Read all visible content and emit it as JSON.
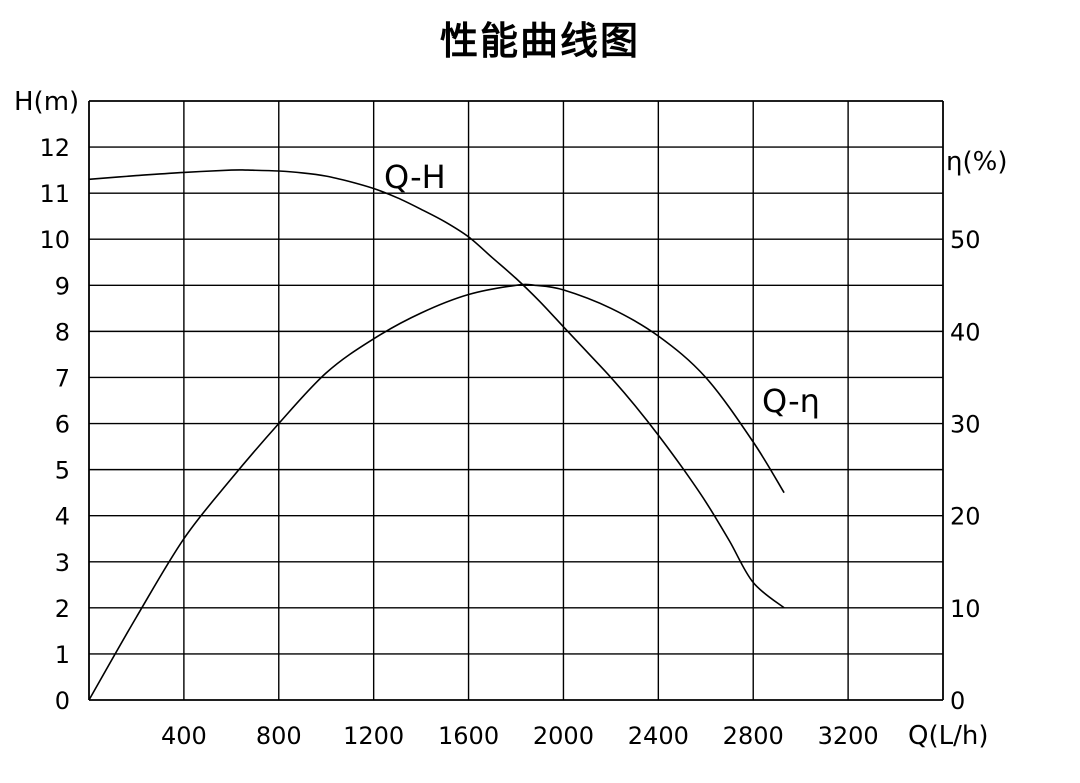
{
  "chart_data": {
    "type": "line",
    "title": "性能曲线图",
    "xlabel": "Q(L/h)",
    "ylabel_left": "H(m)",
    "ylabel_right": "η(%)",
    "xlim": [
      0,
      3600
    ],
    "ylim_left": [
      0,
      13
    ],
    "ylim_right": [
      0,
      65
    ],
    "x_ticks": [
      400,
      800,
      1200,
      1600,
      2000,
      2400,
      2800,
      3200
    ],
    "y_left_ticks": [
      0,
      1,
      2,
      3,
      4,
      5,
      6,
      7,
      8,
      9,
      10,
      11,
      12
    ],
    "y_right_ticks": [
      0,
      10,
      20,
      30,
      40,
      50
    ],
    "grid": true,
    "series": [
      {
        "name": "Q-H",
        "axis": "left",
        "x": [
          0,
          200,
          400,
          600,
          670,
          800,
          900,
          1000,
          1100,
          1200,
          1300,
          1400,
          1500,
          1600,
          1700,
          1800,
          1900,
          2000,
          2100,
          2200,
          2300,
          2400,
          2500,
          2600,
          2700,
          2800,
          2930
        ],
        "values": [
          11.3,
          11.38,
          11.45,
          11.5,
          11.5,
          11.48,
          11.44,
          11.37,
          11.25,
          11.1,
          10.9,
          10.65,
          10.38,
          10.05,
          9.6,
          9.15,
          8.65,
          8.1,
          7.55,
          7.0,
          6.4,
          5.75,
          5.05,
          4.3,
          3.45,
          2.55,
          2.0
        ]
      },
      {
        "name": "Q-η",
        "axis": "right",
        "x": [
          0,
          200,
          400,
          600,
          800,
          1000,
          1200,
          1400,
          1600,
          1800,
          1880,
          2000,
          2200,
          2400,
          2600,
          2800,
          2930
        ],
        "values": [
          0,
          9,
          17.5,
          24,
          30,
          35.5,
          39.2,
          42,
          44,
          45,
          45,
          44.5,
          42.5,
          39.5,
          35,
          28,
          22.5
        ]
      }
    ]
  }
}
